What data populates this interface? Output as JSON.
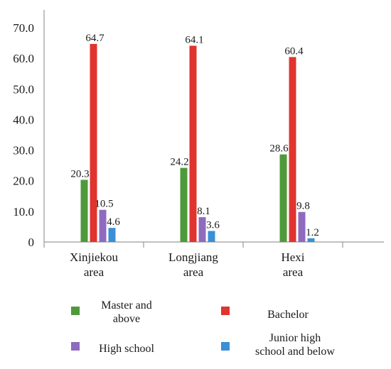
{
  "chart_data": {
    "type": "bar",
    "categories": [
      "Xinjiekou area",
      "Longjiang area",
      "Hexi area"
    ],
    "category_lines": [
      [
        "Xinjiekou",
        "area"
      ],
      [
        "Longjiang",
        "area"
      ],
      [
        "Hexi",
        "area"
      ]
    ],
    "series": [
      {
        "name": "Master and above",
        "values": [
          20.3,
          24.2,
          28.6
        ],
        "color": "#4e9a3a"
      },
      {
        "name": "Bachelor",
        "values": [
          64.7,
          64.1,
          60.4
        ],
        "color": "#e0342f"
      },
      {
        "name": "High school",
        "values": [
          10.5,
          8.1,
          9.8
        ],
        "color": "#8e6bbf"
      },
      {
        "name": "Junior high school and below",
        "values": [
          4.6,
          3.6,
          1.2
        ],
        "color": "#3a8fd6"
      }
    ],
    "data_labels": [
      [
        "20.3",
        "64.7",
        "10.5",
        "4.6"
      ],
      [
        "24.2",
        "64.1",
        "8.1",
        "3.6"
      ],
      [
        "28.6",
        "60.4",
        "9.8",
        "1.2"
      ]
    ],
    "y_ticks": [
      "0",
      "10.0",
      "20.0",
      "30.0",
      "40.0",
      "50.0",
      "60.0",
      "70.0"
    ],
    "ylim": [
      0,
      70
    ],
    "grid": false,
    "legend": {
      "position": "bottom",
      "entries": [
        {
          "lines": [
            "Master and",
            "above"
          ]
        },
        {
          "lines": [
            "Bachelor"
          ]
        },
        {
          "lines": [
            "High school"
          ]
        },
        {
          "lines": [
            "Junior high",
            "school and below"
          ]
        }
      ]
    }
  }
}
